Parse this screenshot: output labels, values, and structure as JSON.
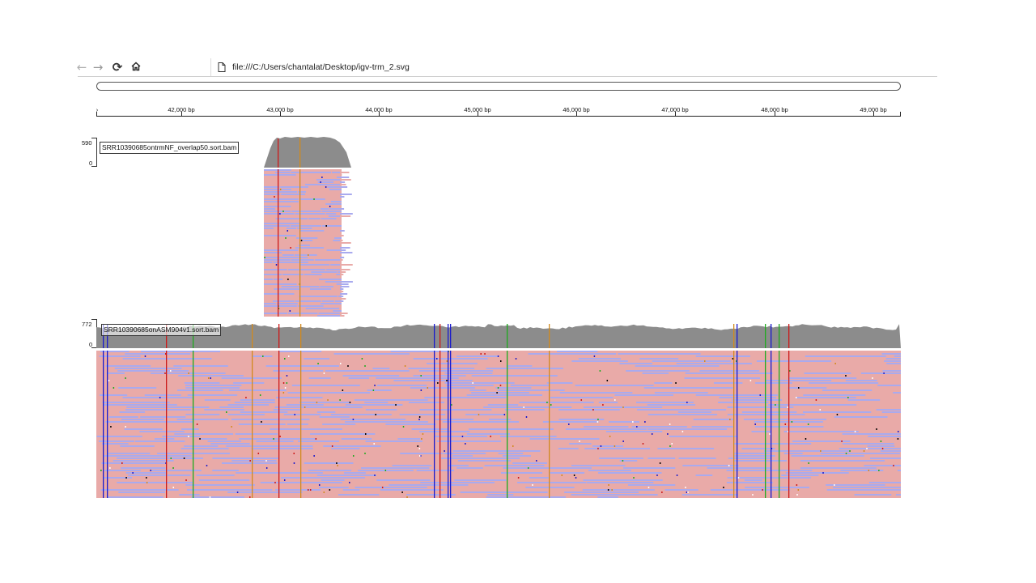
{
  "browser": {
    "url": "file:///C:/Users/chantalat/Desktop/igv-trm_2.svg",
    "icons": {
      "back": "arrow-left-icon",
      "forward": "arrow-right-icon",
      "reload": "reload-icon",
      "home": "home-icon",
      "page": "document-icon"
    }
  },
  "ruler": {
    "unit": "bp",
    "ticks": [
      "42,000 bp",
      "43,000 bp",
      "44,000 bp",
      "45,000 bp",
      "46,000 bp",
      "47,000 bp",
      "48,000 bp",
      "49,000 bp"
    ]
  },
  "tracks": [
    {
      "name": "SRR10390685ontrmNF_overlap50.sort.bam",
      "coverage_max": "590",
      "coverage_min": "0"
    },
    {
      "name": "SRR10390685onASM904v1.sort.bam",
      "coverage_max": "772",
      "coverage_min": "0"
    }
  ],
  "colors": {
    "coverage": "#8c8c8c",
    "read_forward": "#e9aaa8",
    "read_reverse": "#a9aaee",
    "mismatch_a": "#1faa1f",
    "mismatch_c": "#1a1acc",
    "mismatch_g": "#d18a1f",
    "mismatch_t": "#cc1a1a"
  }
}
